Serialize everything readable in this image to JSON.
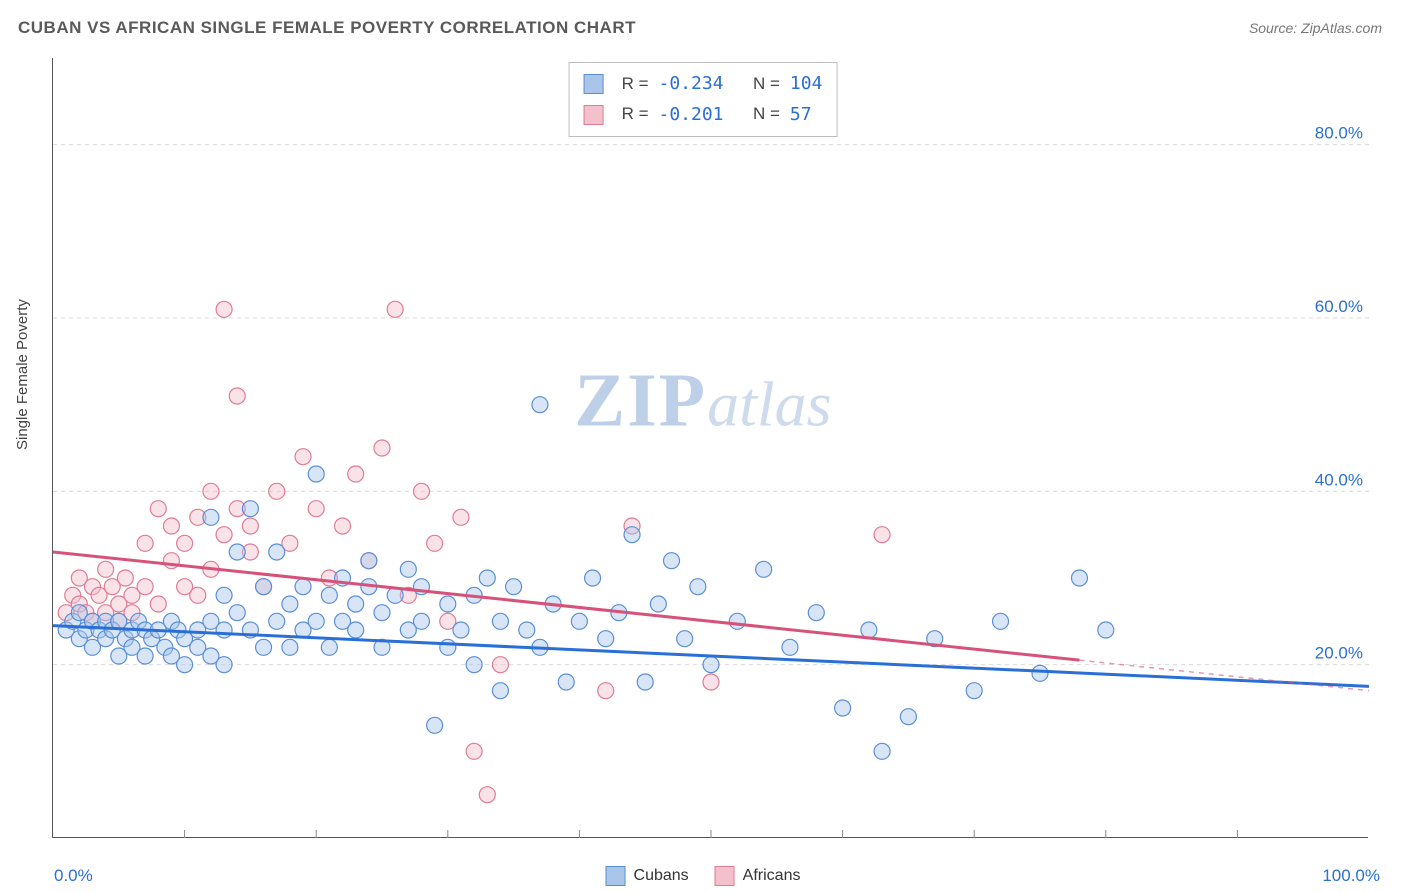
{
  "title": "CUBAN VS AFRICAN SINGLE FEMALE POVERTY CORRELATION CHART",
  "source_label": "Source:",
  "source_name": "ZipAtlas.com",
  "ylabel": "Single Female Poverty",
  "watermark_zip": "ZIP",
  "watermark_atlas": "atlas",
  "chart": {
    "type": "scatter",
    "xlim": [
      0,
      100
    ],
    "ylim": [
      0,
      90
    ],
    "x_tick_min_label": "0.0%",
    "x_tick_max_label": "100.0%",
    "x_minor_ticks": [
      10,
      20,
      30,
      40,
      50,
      60,
      70,
      80,
      90
    ],
    "y_gridlines": [
      20,
      40,
      60,
      80
    ],
    "y_gridline_labels": [
      "20.0%",
      "40.0%",
      "60.0%",
      "80.0%"
    ],
    "grid_color": "#d9d9d9",
    "axis_color": "#555555",
    "tick_color": "#888888",
    "ylabel_color": "#2a6fd6",
    "background_color": "#ffffff",
    "marker_radius": 8,
    "marker_stroke_width": 1.2,
    "marker_opacity": 0.45,
    "trend_line_width": 3,
    "trend_dash_color_suffix_opacity": 0.5,
    "series": [
      {
        "name": "Cubans",
        "legend_label": "Cubans",
        "fill": "#a9c6ea",
        "stroke": "#5a8fd6",
        "trend_color": "#2a6fd6",
        "r_label": "R =",
        "r_value": "-0.234",
        "n_label": "N =",
        "n_value": "104",
        "trend": {
          "x1": 0,
          "y1": 24.5,
          "x2": 100,
          "y2": 17.5,
          "solid_until": 100
        },
        "points": [
          [
            1,
            24
          ],
          [
            1.5,
            25
          ],
          [
            2,
            23
          ],
          [
            2,
            26
          ],
          [
            2.5,
            24
          ],
          [
            3,
            25
          ],
          [
            3,
            22
          ],
          [
            3.5,
            24
          ],
          [
            4,
            25
          ],
          [
            4,
            23
          ],
          [
            4.5,
            24
          ],
          [
            5,
            21
          ],
          [
            5,
            25
          ],
          [
            5.5,
            23
          ],
          [
            6,
            24
          ],
          [
            6,
            22
          ],
          [
            6.5,
            25
          ],
          [
            7,
            21
          ],
          [
            7,
            24
          ],
          [
            7.5,
            23
          ],
          [
            8,
            24
          ],
          [
            8.5,
            22
          ],
          [
            9,
            25
          ],
          [
            9,
            21
          ],
          [
            9.5,
            24
          ],
          [
            10,
            23
          ],
          [
            10,
            20
          ],
          [
            11,
            24
          ],
          [
            11,
            22
          ],
          [
            12,
            25
          ],
          [
            12,
            37
          ],
          [
            12,
            21
          ],
          [
            13,
            24
          ],
          [
            13,
            28
          ],
          [
            13,
            20
          ],
          [
            14,
            33
          ],
          [
            14,
            26
          ],
          [
            15,
            24
          ],
          [
            15,
            38
          ],
          [
            16,
            29
          ],
          [
            16,
            22
          ],
          [
            17,
            33
          ],
          [
            17,
            25
          ],
          [
            18,
            27
          ],
          [
            18,
            22
          ],
          [
            19,
            24
          ],
          [
            19,
            29
          ],
          [
            20,
            42
          ],
          [
            20,
            25
          ],
          [
            21,
            28
          ],
          [
            21,
            22
          ],
          [
            22,
            30
          ],
          [
            22,
            25
          ],
          [
            23,
            27
          ],
          [
            23,
            24
          ],
          [
            24,
            29
          ],
          [
            24,
            32
          ],
          [
            25,
            26
          ],
          [
            25,
            22
          ],
          [
            26,
            28
          ],
          [
            27,
            31
          ],
          [
            27,
            24
          ],
          [
            28,
            25
          ],
          [
            28,
            29
          ],
          [
            29,
            13
          ],
          [
            30,
            27
          ],
          [
            30,
            22
          ],
          [
            31,
            24
          ],
          [
            32,
            28
          ],
          [
            32,
            20
          ],
          [
            33,
            30
          ],
          [
            34,
            25
          ],
          [
            34,
            17
          ],
          [
            35,
            29
          ],
          [
            36,
            24
          ],
          [
            37,
            50
          ],
          [
            37,
            22
          ],
          [
            38,
            27
          ],
          [
            39,
            18
          ],
          [
            40,
            25
          ],
          [
            41,
            30
          ],
          [
            42,
            23
          ],
          [
            43,
            26
          ],
          [
            44,
            35
          ],
          [
            45,
            18
          ],
          [
            46,
            27
          ],
          [
            47,
            32
          ],
          [
            48,
            23
          ],
          [
            49,
            29
          ],
          [
            50,
            20
          ],
          [
            52,
            25
          ],
          [
            54,
            31
          ],
          [
            56,
            22
          ],
          [
            58,
            26
          ],
          [
            60,
            15
          ],
          [
            62,
            24
          ],
          [
            63,
            10
          ],
          [
            65,
            14
          ],
          [
            67,
            23
          ],
          [
            70,
            17
          ],
          [
            72,
            25
          ],
          [
            75,
            19
          ],
          [
            78,
            30
          ],
          [
            80,
            24
          ]
        ]
      },
      {
        "name": "Africans",
        "legend_label": "Africans",
        "fill": "#f3c0cb",
        "stroke": "#e07b94",
        "trend_color": "#d6527a",
        "r_label": "R =",
        "r_value": "-0.201",
        "n_label": "N =",
        "n_value": "57",
        "trend": {
          "x1": 0,
          "y1": 33,
          "x2": 100,
          "y2": 17,
          "solid_until": 78
        },
        "points": [
          [
            1,
            26
          ],
          [
            1.5,
            28
          ],
          [
            2,
            27
          ],
          [
            2,
            30
          ],
          [
            2.5,
            26
          ],
          [
            3,
            29
          ],
          [
            3,
            25
          ],
          [
            3.5,
            28
          ],
          [
            4,
            31
          ],
          [
            4,
            26
          ],
          [
            4.5,
            29
          ],
          [
            5,
            27
          ],
          [
            5,
            25
          ],
          [
            5.5,
            30
          ],
          [
            6,
            28
          ],
          [
            6,
            26
          ],
          [
            7,
            34
          ],
          [
            7,
            29
          ],
          [
            8,
            38
          ],
          [
            8,
            27
          ],
          [
            9,
            32
          ],
          [
            9,
            36
          ],
          [
            10,
            29
          ],
          [
            10,
            34
          ],
          [
            11,
            37
          ],
          [
            11,
            28
          ],
          [
            12,
            40
          ],
          [
            12,
            31
          ],
          [
            13,
            35
          ],
          [
            13,
            61
          ],
          [
            14,
            38
          ],
          [
            14,
            51
          ],
          [
            15,
            33
          ],
          [
            15,
            36
          ],
          [
            16,
            29
          ],
          [
            17,
            40
          ],
          [
            18,
            34
          ],
          [
            19,
            44
          ],
          [
            20,
            38
          ],
          [
            21,
            30
          ],
          [
            22,
            36
          ],
          [
            23,
            42
          ],
          [
            24,
            32
          ],
          [
            25,
            45
          ],
          [
            26,
            61
          ],
          [
            27,
            28
          ],
          [
            28,
            40
          ],
          [
            29,
            34
          ],
          [
            30,
            25
          ],
          [
            31,
            37
          ],
          [
            32,
            10
          ],
          [
            33,
            5
          ],
          [
            34,
            20
          ],
          [
            42,
            17
          ],
          [
            44,
            36
          ],
          [
            50,
            18
          ],
          [
            63,
            35
          ]
        ]
      }
    ]
  }
}
